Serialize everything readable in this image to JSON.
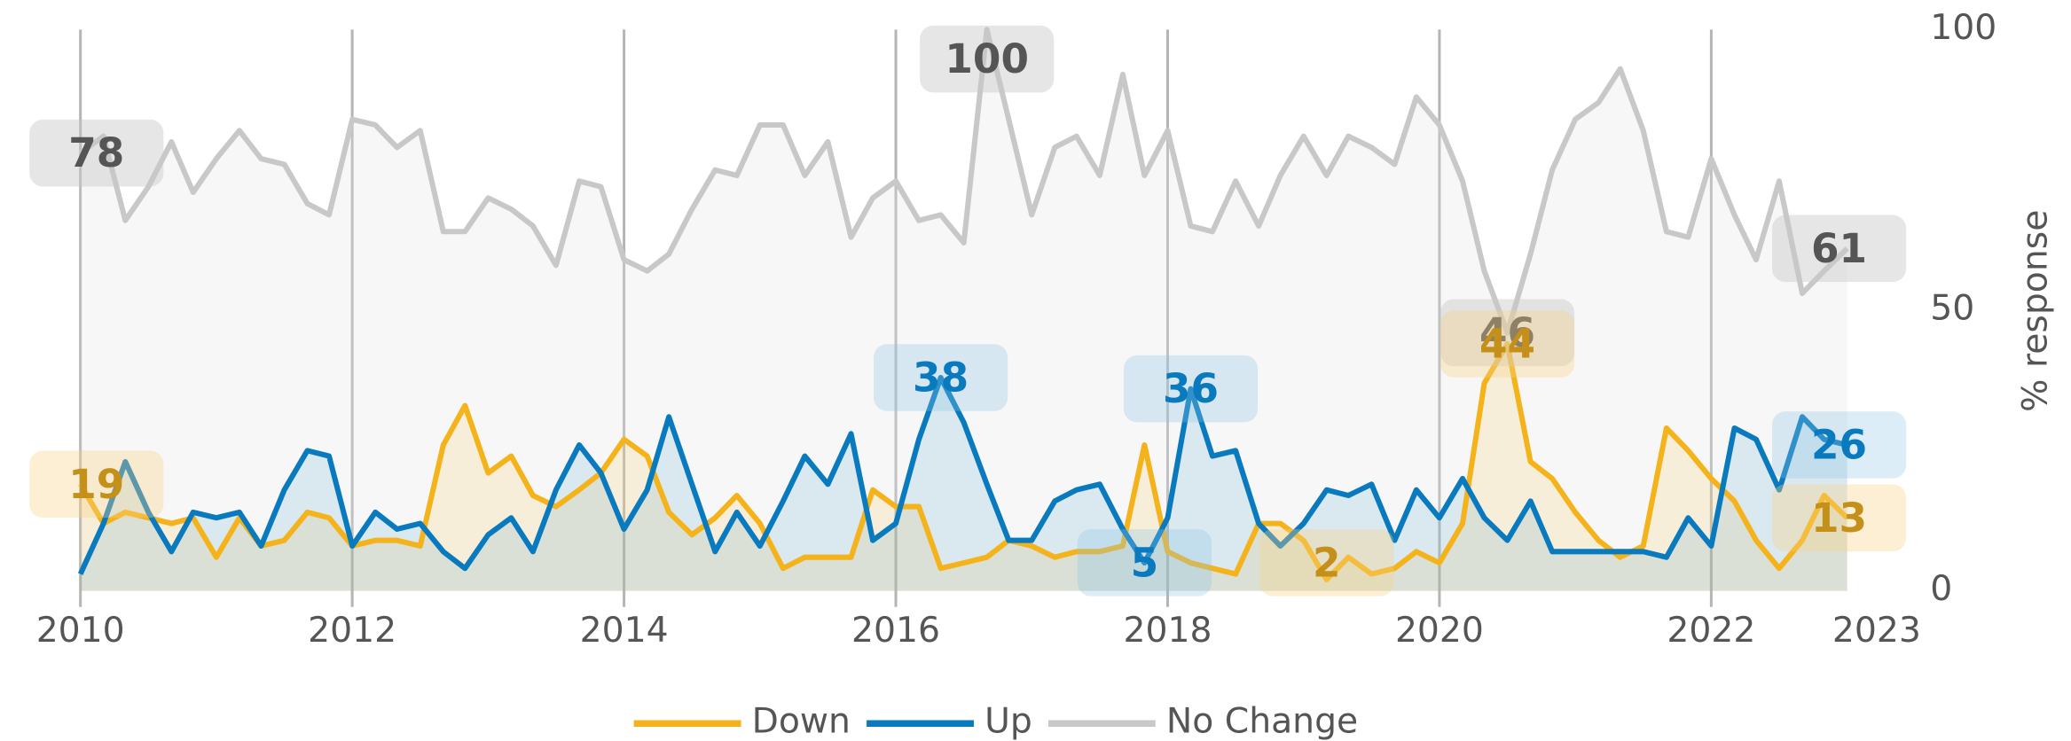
{
  "chart_data": {
    "type": "line",
    "y_label": "% response",
    "x": [
      2010,
      2010.17,
      2010.33,
      2010.5,
      2010.67,
      2010.83,
      2011,
      2011.17,
      2011.33,
      2011.5,
      2011.67,
      2011.83,
      2012,
      2012.17,
      2012.33,
      2012.5,
      2012.67,
      2012.83,
      2013,
      2013.17,
      2013.33,
      2013.5,
      2013.67,
      2013.83,
      2014,
      2014.17,
      2014.33,
      2014.5,
      2014.67,
      2014.83,
      2015,
      2015.17,
      2015.33,
      2015.5,
      2015.67,
      2015.83,
      2016,
      2016.17,
      2016.33,
      2016.5,
      2016.67,
      2016.83,
      2017,
      2017.17,
      2017.33,
      2017.5,
      2017.67,
      2017.83,
      2018,
      2018.17,
      2018.33,
      2018.5,
      2018.67,
      2018.83,
      2019,
      2019.17,
      2019.33,
      2019.5,
      2019.67,
      2019.83,
      2020,
      2020.17,
      2020.33,
      2020.5,
      2020.67,
      2020.83,
      2021,
      2021.17,
      2021.33,
      2021.5,
      2021.67,
      2021.83,
      2022,
      2022.17,
      2022.33,
      2022.5,
      2022.67,
      2022.83,
      2023
    ],
    "series": [
      {
        "name": "Down",
        "color": "#f5b31b",
        "fill": "rgba(245,179,27,0.13)",
        "box": "rgba(245,210,130,0.35)",
        "text_color": "#c4901a",
        "labeled_x": [
          2010,
          2019.17,
          2020.5,
          2023
        ],
        "values": [
          19,
          12,
          14,
          13,
          12,
          13,
          6,
          13,
          8,
          9,
          14,
          13,
          8,
          9,
          9,
          8,
          26,
          33,
          21,
          24,
          17,
          15,
          18,
          21,
          27,
          24,
          14,
          10,
          13,
          17,
          12,
          4,
          6,
          6,
          6,
          18,
          15,
          15,
          4,
          5,
          6,
          9,
          8,
          6,
          7,
          7,
          8,
          26,
          7,
          5,
          4,
          3,
          12,
          12,
          9,
          2,
          6,
          3,
          4,
          7,
          5,
          12,
          37,
          44,
          23,
          20,
          14,
          9,
          6,
          8,
          29,
          25,
          20,
          16,
          9,
          4,
          9,
          17,
          13
        ]
      },
      {
        "name": "Up",
        "color": "#0a7abf",
        "fill": "rgba(10,122,191,0.12)",
        "box": "rgba(140,195,230,0.3)",
        "text_color": "#0a7abf",
        "labeled_x": [
          2016.33,
          2017.83,
          2018.17,
          2023
        ],
        "values": [
          3,
          12,
          23,
          14,
          7,
          14,
          13,
          14,
          8,
          18,
          25,
          24,
          8,
          14,
          11,
          12,
          7,
          4,
          10,
          13,
          7,
          18,
          26,
          21,
          11,
          18,
          31,
          19,
          7,
          14,
          8,
          16,
          24,
          19,
          28,
          9,
          12,
          27,
          38,
          30,
          19,
          9,
          9,
          16,
          18,
          19,
          11,
          5,
          13,
          36,
          24,
          25,
          12,
          8,
          12,
          18,
          17,
          19,
          9,
          18,
          13,
          20,
          13,
          9,
          16,
          7,
          7,
          7,
          7,
          7,
          6,
          13,
          8,
          29,
          27,
          18,
          31,
          27,
          26
        ]
      },
      {
        "name": "No Change",
        "color": "#c8c8c8",
        "fill": "rgba(225,225,225,0.28)",
        "box": "rgba(200,200,200,0.45)",
        "text_color": "#555",
        "labeled_x": [
          2010,
          2016.67,
          2020.5,
          2023
        ],
        "values": [
          78,
          81,
          66,
          72,
          80,
          71,
          77,
          82,
          77,
          76,
          69,
          67,
          84,
          83,
          79,
          82,
          64,
          64,
          70,
          68,
          65,
          58,
          73,
          72,
          59,
          57,
          60,
          68,
          75,
          74,
          83,
          83,
          74,
          80,
          63,
          70,
          73,
          66,
          67,
          62,
          100,
          84,
          67,
          79,
          81,
          74,
          92,
          74,
          82,
          65,
          64,
          73,
          65,
          74,
          81,
          74,
          81,
          79,
          76,
          88,
          83,
          73,
          57,
          46,
          60,
          75,
          84,
          87,
          93,
          82,
          64,
          63,
          77,
          67,
          59,
          73,
          53,
          57,
          61
        ]
      }
    ],
    "xlim": [
      2010,
      2023
    ],
    "xticks": [
      2010,
      2012,
      2014,
      2016,
      2018,
      2020,
      2022,
      2023
    ],
    "ylim": [
      0,
      100
    ],
    "yticks": [
      0,
      50,
      100
    ],
    "y_axis_side": "right",
    "grid": "x",
    "legend": "bottom"
  }
}
